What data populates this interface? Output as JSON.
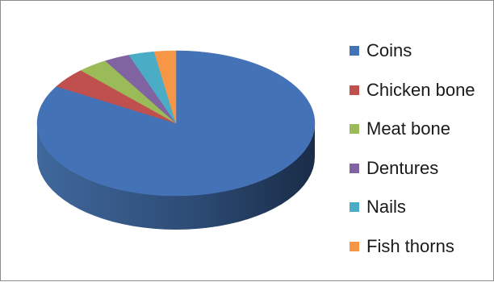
{
  "chart_data": {
    "type": "pie",
    "title": "",
    "categories": [
      "Coins",
      "Chicken bone",
      "Meat bone",
      "Dentures",
      "Nails",
      "Fish thorns"
    ],
    "values": [
      83.5,
      4.5,
      3.5,
      3.0,
      3.0,
      2.5
    ],
    "colors": [
      "#4472b6",
      "#c0504d",
      "#9bbb59",
      "#8064a2",
      "#4bacc6",
      "#f79646"
    ],
    "three_d": true,
    "legend_position": "right"
  }
}
